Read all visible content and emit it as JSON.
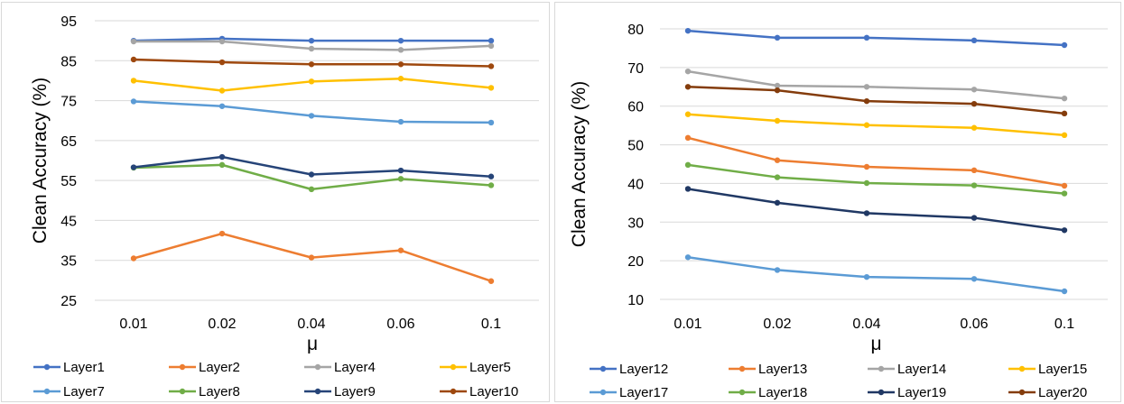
{
  "chart_data": [
    {
      "type": "line",
      "categories": [
        "0.01",
        "0.02",
        "0.04",
        "0.06",
        "0.1"
      ],
      "xlabel": "μ",
      "ylabel": "Clean Accuracy (%)",
      "ylim": [
        25,
        95
      ],
      "yticks": [
        "95",
        "85",
        "75",
        "65",
        "55",
        "45",
        "35",
        "25"
      ],
      "grid": "horizontal",
      "legend_position": "bottom",
      "series": [
        {
          "name": "Layer1",
          "color": "#4472c4",
          "values": [
            90.0,
            90.5,
            90.0,
            90.0,
            90.0
          ]
        },
        {
          "name": "Layer2",
          "color": "#ed7d31",
          "values": [
            35.5,
            41.7,
            35.7,
            37.5,
            29.8
          ]
        },
        {
          "name": "Layer4",
          "color": "#a5a5a5",
          "values": [
            89.8,
            89.8,
            88.0,
            87.7,
            88.7
          ]
        },
        {
          "name": "Layer5",
          "color": "#ffc000",
          "values": [
            80.0,
            77.5,
            79.8,
            80.5,
            78.2
          ]
        },
        {
          "name": "Layer7",
          "color": "#5b9bd5",
          "values": [
            74.8,
            73.6,
            71.2,
            69.7,
            69.5
          ]
        },
        {
          "name": "Layer8",
          "color": "#70ad47",
          "values": [
            58.2,
            58.9,
            52.8,
            55.4,
            53.8
          ]
        },
        {
          "name": "Layer9",
          "color": "#264478",
          "values": [
            58.3,
            60.9,
            56.5,
            57.5,
            56.0
          ]
        },
        {
          "name": "Layer10",
          "color": "#9e480e",
          "values": [
            85.3,
            84.6,
            84.1,
            84.1,
            83.6
          ]
        }
      ]
    },
    {
      "type": "line",
      "categories": [
        "0.01",
        "0.02",
        "0.04",
        "0.06",
        "0.1"
      ],
      "xlabel": "μ",
      "ylabel": "Clean Accuracy (%)",
      "ylim": [
        10,
        80
      ],
      "yticks": [
        "80",
        "70",
        "60",
        "50",
        "40",
        "30",
        "20",
        "10"
      ],
      "grid": "horizontal",
      "legend_position": "bottom",
      "series": [
        {
          "name": "Layer12",
          "color": "#4472c4",
          "values": [
            79.5,
            77.7,
            77.7,
            77.0,
            75.8
          ]
        },
        {
          "name": "Layer13",
          "color": "#ed7d31",
          "values": [
            51.8,
            46.0,
            44.3,
            43.4,
            39.4
          ]
        },
        {
          "name": "Layer14",
          "color": "#a5a5a5",
          "values": [
            69.0,
            65.3,
            65.0,
            64.3,
            62.0
          ]
        },
        {
          "name": "Layer15",
          "color": "#ffc000",
          "values": [
            57.9,
            56.2,
            55.1,
            54.4,
            52.5
          ]
        },
        {
          "name": "Layer17",
          "color": "#5b9bd5",
          "values": [
            20.9,
            17.6,
            15.8,
            15.3,
            12.1
          ]
        },
        {
          "name": "Layer18",
          "color": "#70ad47",
          "values": [
            44.8,
            41.6,
            40.1,
            39.5,
            37.4
          ]
        },
        {
          "name": "Layer19",
          "color": "#203864",
          "values": [
            38.6,
            35.0,
            32.3,
            31.1,
            27.9
          ]
        },
        {
          "name": "Layer20",
          "color": "#843c0c",
          "values": [
            65.0,
            64.1,
            61.3,
            60.6,
            58.1
          ]
        }
      ]
    }
  ]
}
